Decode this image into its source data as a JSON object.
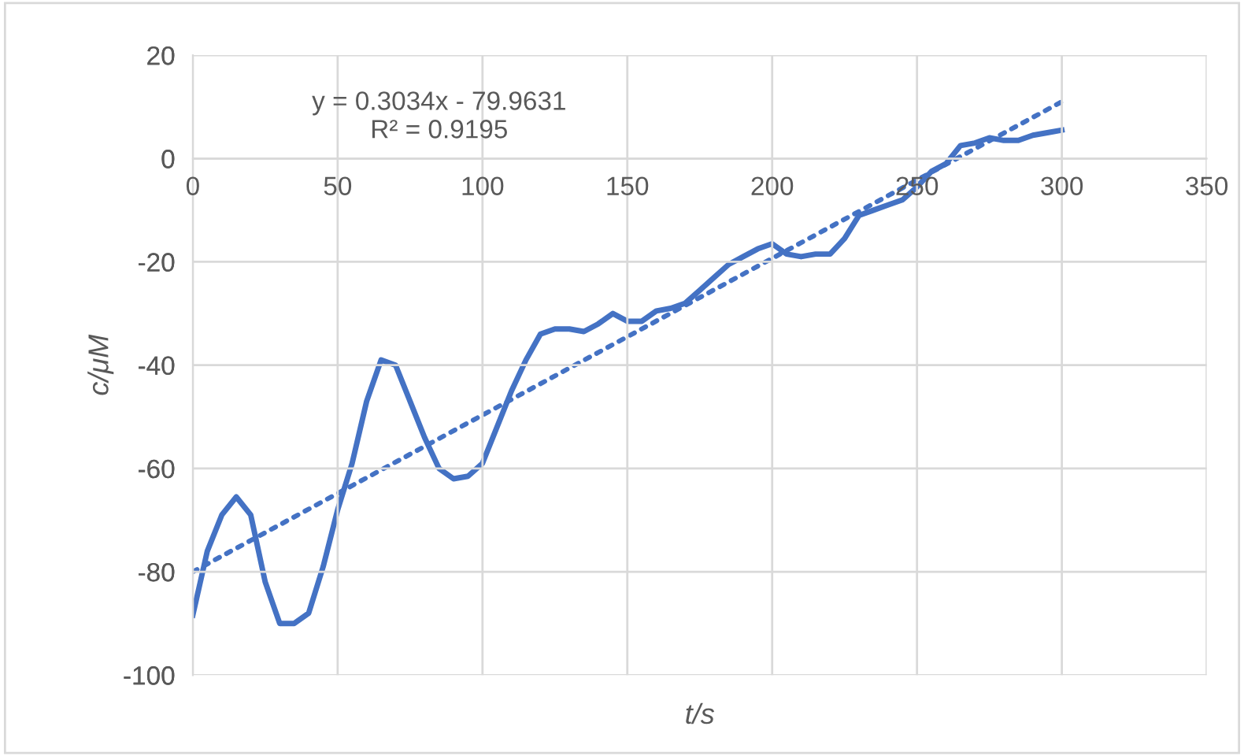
{
  "chart_data": {
    "type": "line",
    "xlabel": "t/s",
    "ylabel": "c/μM",
    "xlim": [
      0,
      350
    ],
    "ylim": [
      -100,
      20
    ],
    "xticks": [
      0,
      50,
      100,
      150,
      200,
      250,
      300,
      350
    ],
    "yticks": [
      -100,
      -80,
      -60,
      -40,
      -20,
      0,
      20
    ],
    "grid": true,
    "legend": false,
    "annotations": [
      "y = 0.3034x - 79.9631\nR² = 0.9195"
    ],
    "series": [
      {
        "color": "#4472c4",
        "line_style": "solid",
        "x": [
          0,
          5,
          10,
          15,
          20,
          25,
          30,
          35,
          40,
          45,
          50,
          55,
          60,
          65,
          70,
          75,
          80,
          85,
          90,
          95,
          100,
          105,
          110,
          115,
          120,
          125,
          130,
          135,
          140,
          145,
          150,
          155,
          160,
          165,
          170,
          175,
          180,
          185,
          190,
          195,
          200,
          205,
          210,
          215,
          220,
          225,
          230,
          235,
          240,
          245,
          250,
          255,
          260,
          265,
          270,
          275,
          280,
          285,
          290,
          295,
          300
        ],
        "values": [
          -88.4,
          -76,
          -69,
          -65.5,
          -69,
          -82,
          -90,
          -90,
          -88,
          -79,
          -68,
          -59,
          -47,
          -39,
          -40,
          -47,
          -54,
          -60,
          -62,
          -61.5,
          -59,
          -52,
          -45,
          -39,
          -34,
          -33,
          -33,
          -33.5,
          -32,
          -30,
          -31.5,
          -31.5,
          -29.5,
          -29,
          -28,
          -25.5,
          -23,
          -20.5,
          -19,
          -17.5,
          -16.5,
          -18.5,
          -19,
          -18.5,
          -18.5,
          -15.5,
          -11,
          -10,
          -9,
          -8,
          -5.5,
          -2.5,
          -1,
          2.5,
          3,
          4,
          3.5,
          3.5,
          4.5,
          5,
          5.5
        ]
      },
      {
        "color": "#4472c4",
        "line_style": "dotted",
        "x": [
          0,
          300
        ],
        "values": [
          -80,
          11
        ]
      }
    ]
  }
}
